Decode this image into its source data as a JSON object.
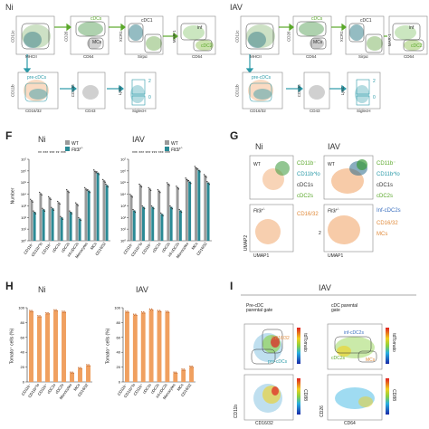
{
  "panel_e": {
    "ni": {
      "condition": "Ni",
      "top_axes": [
        "CD11c",
        "MHCII",
        "CD26",
        "CD64",
        "XCR1",
        "Sirpα",
        "MAR-1",
        "CD64"
      ],
      "top_gates": [
        "cDCs",
        "MCs",
        "cDC1",
        "inf",
        "cDC2"
      ],
      "bottom_axes": [
        "CD11b",
        "CD16/32",
        "CD135",
        "CD43",
        "Ly6C",
        "SiglecH"
      ],
      "bottom_gates": [
        "pre-cDCs",
        "2",
        "0"
      ]
    },
    "iav": {
      "condition": "IAV",
      "top_axes": [
        "CD11c",
        "MHCII",
        "CD26",
        "CD64",
        "XCR1",
        "Sirpα",
        "MAR-1",
        "CD64"
      ],
      "top_gates": [
        "cDCs",
        "MCs",
        "cDC1",
        "inf",
        "cDC2"
      ],
      "bottom_axes": [
        "CD11b",
        "CD16/32",
        "CD135",
        "CD43",
        "Ly6C",
        "SiglecH"
      ],
      "bottom_gates": [
        "pre-cDCs",
        "2",
        "0"
      ]
    }
  },
  "panel_f": {
    "letter": "F",
    "ni_title": "Ni",
    "iav_title": "IAV",
    "legend": {
      "wt": "WT",
      "ko": "Flt3l",
      "ko_sup": "-/-"
    },
    "ylabel": "Number",
    "yticks": [
      "10⁷",
      "10⁶",
      "10⁵",
      "10⁴",
      "10³",
      "10²",
      "10¹",
      "10⁰"
    ],
    "categories": [
      "CD11b⁻",
      "CD11b^lo",
      "CD11b⁺",
      "cDC1s",
      "cDC2s",
      "inf-cDC2s",
      "Monocytes",
      "MCs",
      "CD16/32"
    ],
    "sig_ni": "** *** *** ** ***",
    "sig_iav": "*** *** *** *** *** ***",
    "colors": {
      "wt": "#9a9a9a",
      "ko": "#2a8a95"
    }
  },
  "chart_data": [
    {
      "type": "bar",
      "title": "Ni",
      "ylabel": "Number",
      "yscale": "log",
      "ylim": [
        1,
        10000000
      ],
      "categories": [
        "CD11b⁻",
        "CD11b^lo",
        "CD11b⁺",
        "cDC1s",
        "cDC2s",
        "inf-cDC2s",
        "Monocytes",
        "MCs",
        "CD16/32"
      ],
      "series": [
        {
          "name": "WT",
          "values": [
            3000,
            12000,
            5000,
            2000,
            20000,
            1500,
            30000,
            1000000,
            150000
          ]
        },
        {
          "name": "Flt3l-/-",
          "values": [
            300,
            500,
            600,
            100,
            300,
            80,
            20000,
            700000,
            60000
          ]
        }
      ]
    },
    {
      "type": "bar",
      "title": "IAV",
      "ylabel": "Number",
      "yscale": "log",
      "ylim": [
        1,
        10000000
      ],
      "categories": [
        "CD11b⁻",
        "CD11b^lo",
        "CD11b⁺",
        "cDC1s",
        "cDC2s",
        "inf-cDC2s",
        "Monocytes",
        "MCs",
        "CD16/32"
      ],
      "series": [
        {
          "name": "WT",
          "values": [
            8000,
            60000,
            30000,
            20000,
            80000,
            40000,
            200000,
            2000000,
            400000
          ]
        },
        {
          "name": "Flt3l-/-",
          "values": [
            400,
            800,
            800,
            200,
            800,
            400,
            120000,
            1200000,
            100000
          ]
        }
      ]
    },
    {
      "type": "bar",
      "title": "Ni",
      "ylabel": "Tomato⁺ cells (%)",
      "ylim": [
        0,
        100
      ],
      "categories": [
        "CD11b⁻",
        "CD11b^lo",
        "CD11b⁺",
        "cDC1s",
        "cDC2s",
        "Monocytes",
        "MCs",
        "CD16/32"
      ],
      "series": [
        {
          "values": [
            95,
            88,
            92,
            96,
            94,
            12,
            18,
            22
          ]
        }
      ]
    },
    {
      "type": "bar",
      "title": "IAV",
      "ylabel": "Tomato⁺ cells (%)",
      "ylim": [
        0,
        100
      ],
      "categories": [
        "CD11b⁻",
        "CD11b^lo",
        "CD11b⁺",
        "cDC1s",
        "cDC2s",
        "inf-cDC2s",
        "Monocytes",
        "MCs",
        "CD16/32"
      ],
      "series": [
        {
          "values": [
            94,
            90,
            93,
            97,
            95,
            94,
            12,
            16,
            20
          ]
        }
      ]
    }
  ],
  "panel_g": {
    "letter": "G",
    "ni_title": "Ni",
    "iav_title": "IAV",
    "wt": "WT",
    "ko": "Flt3l",
    "ko_sup": "-/-",
    "umap1": "UMAP1",
    "umap2": "UMAP2",
    "umap2_iav": "2",
    "ni_legend": [
      "CD11b⁻",
      "CD11b^lo",
      "cDC1s",
      "cDC2s",
      "CD16/32"
    ],
    "iav_legend": [
      "CD11b⁻",
      "CD11b^lo",
      "cDC1s",
      "cDC2s",
      "Inf-cDC2s",
      "CD16/32",
      "MCs"
    ]
  },
  "panel_h": {
    "letter": "H",
    "ni_title": "Ni",
    "iav_title": "IAV",
    "ylabel": "Tomato⁺ cells (%)",
    "yticks": [
      "100",
      "80",
      "60",
      "40",
      "20",
      "0"
    ],
    "bar_color": "#f0a060"
  },
  "panel_i": {
    "letter": "I",
    "condition": "IAV",
    "precdc_title": "Pre-cDC\nparental gate",
    "cdc_title": "cDC parental\ngate",
    "gates_left": [
      "CD16/32",
      "pre-cDCs"
    ],
    "gates_right": [
      "inf-cDC2s",
      "cDC2s",
      "MCs"
    ],
    "axes": [
      "CD11b",
      "CD16/32",
      "CD26",
      "CD64"
    ],
    "cbar_left": "tdTomato",
    "cbar_left_bottom": "CD88",
    "cbar_right": "tdTomato",
    "cbar_right_bottom": "CD88"
  }
}
